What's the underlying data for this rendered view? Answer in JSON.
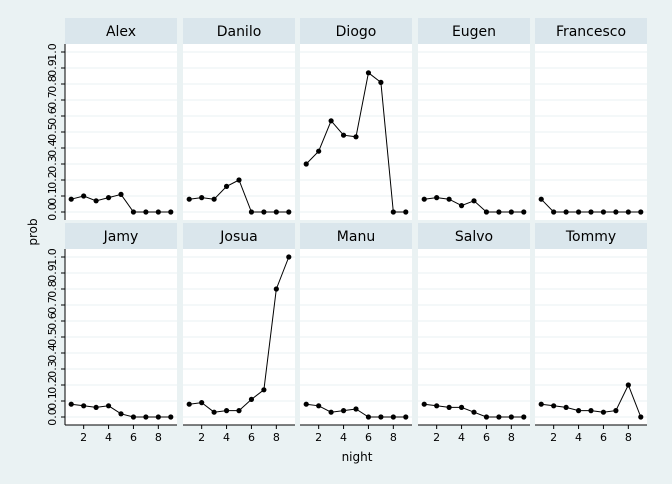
{
  "chart_data": {
    "type": "line",
    "layout": "small-multiples 2 rows x 5 columns",
    "xlabel": "night",
    "ylabel": "prob",
    "x": [
      1,
      2,
      3,
      4,
      5,
      6,
      7,
      8,
      9
    ],
    "xticks": [
      2,
      4,
      6,
      8
    ],
    "xlim": [
      0.5,
      9.5
    ],
    "ylim": [
      -0.05,
      1.05
    ],
    "yticks": [
      0.0,
      0.1,
      0.2,
      0.3,
      0.4,
      0.5,
      0.6,
      0.7,
      0.8,
      0.9,
      1.0
    ],
    "ytick_labels": [
      "0.0",
      "0.1",
      "0.2",
      "0.3",
      "0.4",
      "0.5",
      "0.6",
      "0.7",
      "0.8",
      "0.9",
      "1.0"
    ],
    "grid": true,
    "legend": "none",
    "colors": {
      "page_background": "#eaf2f3",
      "plot_background": "#ffffff",
      "strip_background": "#dae6ec",
      "grid": "#eaf2f3",
      "line": "#000000",
      "marker": "#000000"
    },
    "panels": [
      {
        "name": "Alex",
        "values": [
          0.08,
          0.1,
          0.07,
          0.09,
          0.11,
          0.0,
          0.0,
          0.0,
          0.0
        ]
      },
      {
        "name": "Danilo",
        "values": [
          0.08,
          0.09,
          0.08,
          0.16,
          0.2,
          0.0,
          0.0,
          0.0,
          0.0
        ]
      },
      {
        "name": "Diogo",
        "values": [
          0.3,
          0.38,
          0.57,
          0.48,
          0.47,
          0.87,
          0.81,
          0.0,
          0.0
        ]
      },
      {
        "name": "Eugen",
        "values": [
          0.08,
          0.09,
          0.08,
          0.04,
          0.07,
          0.0,
          0.0,
          0.0,
          0.0
        ]
      },
      {
        "name": "Francesco",
        "values": [
          0.08,
          0.0,
          0.0,
          0.0,
          0.0,
          0.0,
          0.0,
          0.0,
          0.0
        ]
      },
      {
        "name": "Jamy",
        "values": [
          0.08,
          0.07,
          0.06,
          0.07,
          0.02,
          0.0,
          0.0,
          0.0,
          0.0
        ]
      },
      {
        "name": "Josua",
        "values": [
          0.08,
          0.09,
          0.03,
          0.04,
          0.04,
          0.11,
          0.17,
          0.8,
          1.0
        ]
      },
      {
        "name": "Manu",
        "values": [
          0.08,
          0.07,
          0.03,
          0.04,
          0.05,
          0.0,
          0.0,
          0.0,
          0.0
        ]
      },
      {
        "name": "Salvo",
        "values": [
          0.08,
          0.07,
          0.06,
          0.06,
          0.03,
          0.0,
          0.0,
          0.0,
          0.0
        ]
      },
      {
        "name": "Tommy",
        "values": [
          0.08,
          0.07,
          0.06,
          0.04,
          0.04,
          0.03,
          0.04,
          0.2,
          0.0
        ]
      }
    ]
  }
}
